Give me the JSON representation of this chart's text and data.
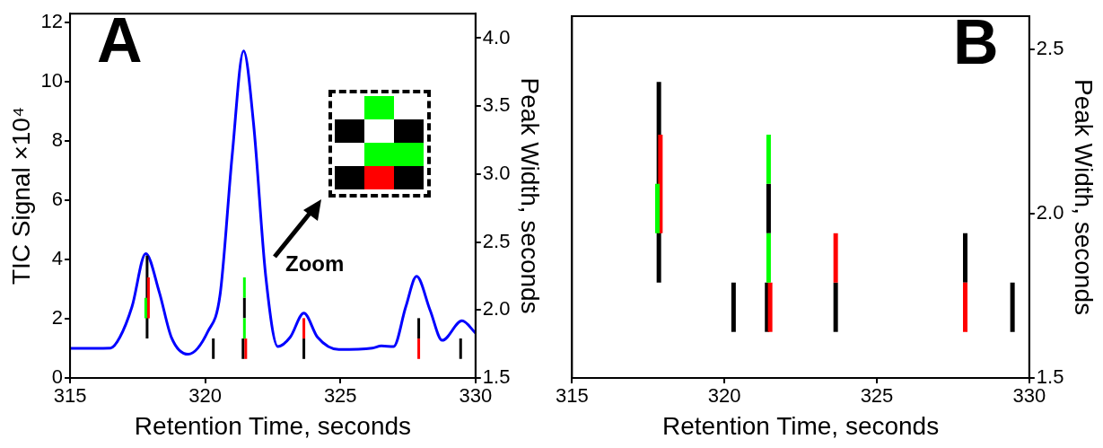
{
  "chart_data": [
    {
      "type": "line",
      "xlabel": "Retention Time, seconds",
      "ylabel": "TIC Signal ×10⁴",
      "y2label": "Peak Width, seconds",
      "xlim": [
        315,
        330
      ],
      "xticks": [
        315,
        320,
        325,
        330
      ],
      "ylim": [
        0,
        12.3
      ],
      "yticks": [
        0,
        2,
        4,
        6,
        8,
        10,
        12
      ],
      "y2lim": [
        1.5,
        4.18
      ],
      "y2ticks": [
        {
          "value": 1.5,
          "label": "1.5"
        },
        {
          "value": 2,
          "label": "2.0"
        },
        {
          "value": 2.5,
          "label": "2.5"
        },
        {
          "value": 3,
          "label": "3.0"
        },
        {
          "value": 3.5,
          "label": "3.5"
        },
        {
          "value": 4,
          "label": "4.0"
        }
      ],
      "grid": false,
      "legend": false,
      "marker": "none",
      "line_style": "solid",
      "annotations": [
        "A",
        "Zoom"
      ],
      "series": [
        {
          "color": "#0000ff",
          "x": [
            315.0,
            316.5,
            316.84,
            317.29,
            317.8,
            318.3,
            318.75,
            319.37,
            320.1,
            320.55,
            321.0,
            321.42,
            321.79,
            322.24,
            322.69,
            323.14,
            323.65,
            324.16,
            324.94,
            326.18,
            326.52,
            326.97,
            327.42,
            327.82,
            328.32,
            328.77,
            329.5,
            330.0
          ],
          "values": [
            1.0,
            1.01,
            1.37,
            2.4,
            4.2,
            2.9,
            1.37,
            0.8,
            1.57,
            2.81,
            7.54,
            11.04,
            8.57,
            3.43,
            1.06,
            1.37,
            2.19,
            1.37,
            0.96,
            1.01,
            1.08,
            1.06,
            2.4,
            3.43,
            2.29,
            1.27,
            1.93,
            1.52
          ]
        },
        {
          "axis": "y2",
          "color": "#000000",
          "x": [
            317.85,
            317.85
          ],
          "values": [
            1.79,
            2.4
          ]
        },
        {
          "axis": "y2",
          "color": "#000000",
          "x": [
            320.3,
            320.3
          ],
          "values": [
            1.64,
            1.79
          ]
        },
        {
          "axis": "y2",
          "color": "#000000",
          "x": [
            321.45,
            321.45
          ],
          "values": [
            1.94,
            2.09
          ]
        },
        {
          "axis": "y2",
          "color": "#000000",
          "x": [
            321.4,
            321.4
          ],
          "values": [
            1.64,
            1.79
          ]
        },
        {
          "axis": "y2",
          "color": "#000000",
          "x": [
            323.65,
            323.65
          ],
          "values": [
            1.64,
            1.79
          ]
        },
        {
          "axis": "y2",
          "color": "#000000",
          "x": [
            327.9,
            327.9
          ],
          "values": [
            1.79,
            1.94
          ]
        },
        {
          "axis": "y2",
          "color": "#000000",
          "x": [
            329.45,
            329.45
          ],
          "values": [
            1.64,
            1.79
          ]
        },
        {
          "axis": "y2",
          "color": "#ff0000",
          "x": [
            317.9,
            317.9
          ],
          "values": [
            1.94,
            2.24
          ]
        },
        {
          "axis": "y2",
          "color": "#ff0000",
          "x": [
            321.5,
            321.5
          ],
          "values": [
            1.64,
            1.79
          ]
        },
        {
          "axis": "y2",
          "color": "#ff0000",
          "x": [
            323.65,
            323.65
          ],
          "values": [
            1.79,
            1.94
          ]
        },
        {
          "axis": "y2",
          "color": "#ff0000",
          "x": [
            327.9,
            327.9
          ],
          "values": [
            1.64,
            1.79
          ]
        },
        {
          "axis": "y2",
          "color": "#00ff00",
          "x": [
            317.8,
            317.8
          ],
          "values": [
            1.94,
            2.09
          ]
        },
        {
          "axis": "y2",
          "color": "#00ff00",
          "x": [
            321.45,
            321.45
          ],
          "values": [
            2.09,
            2.24
          ]
        },
        {
          "axis": "y2",
          "color": "#00ff00",
          "x": [
            321.45,
            321.45
          ],
          "values": [
            1.79,
            1.94
          ]
        }
      ]
    },
    {
      "type": "line",
      "xlabel": "Retention Time, seconds",
      "y2label": "Peak Width, seconds",
      "xlim": [
        315,
        330
      ],
      "xticks": [
        315,
        320,
        325,
        330
      ],
      "y2lim": [
        1.5,
        2.6
      ],
      "y2ticks": [
        {
          "value": 1.5,
          "label": "1.5"
        },
        {
          "value": 2,
          "label": "2.0"
        },
        {
          "value": 2.5,
          "label": "2.5"
        }
      ],
      "grid": false,
      "legend": false,
      "marker": "none",
      "line_style": "solid",
      "annotations": [
        "B"
      ],
      "series": [
        {
          "axis": "y2",
          "color": "#000000",
          "x": [
            317.85,
            317.85
          ],
          "values": [
            1.79,
            2.4
          ]
        },
        {
          "axis": "y2",
          "color": "#000000",
          "x": [
            320.3,
            320.3
          ],
          "values": [
            1.64,
            1.79
          ]
        },
        {
          "axis": "y2",
          "color": "#000000",
          "x": [
            321.45,
            321.45
          ],
          "values": [
            1.94,
            2.09
          ]
        },
        {
          "axis": "y2",
          "color": "#000000",
          "x": [
            321.4,
            321.4
          ],
          "values": [
            1.64,
            1.79
          ]
        },
        {
          "axis": "y2",
          "color": "#000000",
          "x": [
            323.65,
            323.65
          ],
          "values": [
            1.64,
            1.79
          ]
        },
        {
          "axis": "y2",
          "color": "#000000",
          "x": [
            327.9,
            327.9
          ],
          "values": [
            1.79,
            1.94
          ]
        },
        {
          "axis": "y2",
          "color": "#000000",
          "x": [
            329.45,
            329.45
          ],
          "values": [
            1.64,
            1.79
          ]
        },
        {
          "axis": "y2",
          "color": "#ff0000",
          "x": [
            317.9,
            317.9
          ],
          "values": [
            1.94,
            2.24
          ]
        },
        {
          "axis": "y2",
          "color": "#ff0000",
          "x": [
            321.5,
            321.5
          ],
          "values": [
            1.64,
            1.79
          ]
        },
        {
          "axis": "y2",
          "color": "#ff0000",
          "x": [
            323.65,
            323.65
          ],
          "values": [
            1.79,
            1.94
          ]
        },
        {
          "axis": "y2",
          "color": "#ff0000",
          "x": [
            327.9,
            327.9
          ],
          "values": [
            1.64,
            1.79
          ]
        },
        {
          "axis": "y2",
          "color": "#00ff00",
          "x": [
            317.8,
            317.8
          ],
          "values": [
            1.94,
            2.09
          ]
        },
        {
          "axis": "y2",
          "color": "#00ff00",
          "x": [
            321.45,
            321.45
          ],
          "values": [
            2.09,
            2.24
          ]
        },
        {
          "axis": "y2",
          "color": "#00ff00",
          "x": [
            321.45,
            321.45
          ],
          "values": [
            1.79,
            1.94
          ]
        }
      ]
    }
  ]
}
